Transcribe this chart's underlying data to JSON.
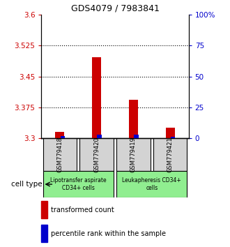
{
  "title": "GDS4079 / 7983841",
  "samples": [
    "GSM779418",
    "GSM779420",
    "GSM779419",
    "GSM779421"
  ],
  "transformed_counts": [
    3.315,
    3.497,
    3.393,
    3.325
  ],
  "percentile_ranks": [
    2.0,
    3.0,
    3.0,
    1.0
  ],
  "ylim_left": [
    3.3,
    3.6
  ],
  "ylim_right": [
    0,
    100
  ],
  "yticks_left": [
    3.3,
    3.375,
    3.45,
    3.525,
    3.6
  ],
  "yticks_right": [
    0,
    25,
    50,
    75,
    100
  ],
  "ytick_labels_left": [
    "3.3",
    "3.375",
    "3.45",
    "3.525",
    "3.6"
  ],
  "ytick_labels_right": [
    "0",
    "25",
    "50",
    "75",
    "100%"
  ],
  "bar_base": 3.3,
  "red_color": "#cc0000",
  "blue_color": "#0000cc",
  "sample_bg_color": "#d3d3d3",
  "group1_color": "#90ee90",
  "group2_color": "#90ee90",
  "group1_label": "Lipotransfer aspirate\nCD34+ cells",
  "group2_label": "Leukapheresis CD34+\ncells",
  "group1_samples": [
    0,
    1
  ],
  "group2_samples": [
    2,
    3
  ],
  "cell_type_label": "cell type",
  "legend_red": "transformed count",
  "legend_blue": "percentile rank within the sample",
  "red_bar_width": 0.25,
  "blue_bar_width": 0.12
}
